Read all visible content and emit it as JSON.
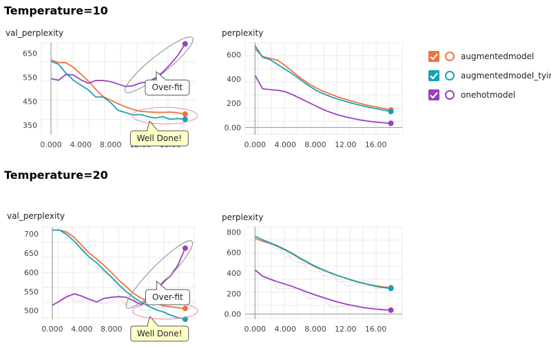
{
  "sections": [
    {
      "title": "Temperature=10"
    },
    {
      "title": "Temperature=20"
    }
  ],
  "legend": {
    "items": [
      {
        "label": "augmentedmodel",
        "color": "#f4703a",
        "icon": "checkbox-checked"
      },
      {
        "label": "augmentedmodel_tying",
        "color": "#15a3b5",
        "icon": "checkbox-checked"
      },
      {
        "label": "onehotmodel",
        "color": "#9b3fbf",
        "icon": "checkbox-checked"
      }
    ]
  },
  "annotations": {
    "ovr": "Over-fit",
    "well": "Well Done!"
  },
  "chart_data": [
    {
      "id": "t10_val",
      "type": "line",
      "title": "val_perplexity",
      "x": [
        0,
        1,
        2,
        3,
        4,
        5,
        6,
        7,
        8,
        9,
        10,
        11,
        12,
        13,
        14,
        15,
        16,
        17,
        18
      ],
      "xticks": [
        "0.000",
        "4.000",
        "8.000",
        "12.00",
        "16.00"
      ],
      "xtick_values": [
        0,
        4,
        8,
        12,
        16
      ],
      "yticks": [
        "350",
        "450",
        "550",
        "650"
      ],
      "ytick_values": [
        350,
        450,
        550,
        650
      ],
      "xlim": [
        -1.3,
        19.5
      ],
      "ylim": [
        310,
        695
      ],
      "annotations": [
        {
          "text": "Over-fit"
        },
        {
          "text": "Well Done!"
        }
      ],
      "series": [
        {
          "name": "augmentedmodel",
          "values": [
            622,
            612,
            611,
            592,
            564,
            535,
            500,
            470,
            455,
            440,
            427,
            416,
            408,
            406,
            404,
            404,
            405,
            402,
            397
          ]
        },
        {
          "name": "augmentedmodel_tying",
          "values": [
            617,
            605,
            568,
            538,
            518,
            498,
            468,
            468,
            445,
            412,
            403,
            393,
            395,
            386,
            380,
            386,
            375,
            378,
            375
          ]
        },
        {
          "name": "onehotmodel",
          "values": [
            545,
            538,
            562,
            560,
            540,
            525,
            537,
            537,
            532,
            522,
            512,
            515,
            527,
            530,
            548,
            572,
            604,
            641,
            690
          ]
        }
      ]
    },
    {
      "id": "t10_ppl",
      "type": "line",
      "title": "perplexity",
      "x": [
        0,
        1,
        2,
        3,
        4,
        5,
        6,
        7,
        8,
        9,
        10,
        11,
        12,
        13,
        14,
        15,
        16,
        17,
        18
      ],
      "xticks": [
        "0.000",
        "4.000",
        "8.000",
        "12.00",
        "16.00"
      ],
      "xtick_values": [
        0,
        4,
        8,
        12,
        16
      ],
      "yticks": [
        "0.00",
        "200",
        "400",
        "600"
      ],
      "ytick_values": [
        0,
        200,
        400,
        600
      ],
      "xlim": [
        -1.3,
        19.5
      ],
      "ylim": [
        -60,
        700
      ],
      "series": [
        {
          "name": "augmentedmodel",
          "values": [
            650,
            585,
            570,
            555,
            510,
            460,
            410,
            365,
            330,
            300,
            275,
            252,
            232,
            215,
            198,
            183,
            170,
            158,
            145
          ]
        },
        {
          "name": "augmentedmodel_tying",
          "values": [
            675,
            580,
            560,
            520,
            480,
            440,
            395,
            350,
            310,
            280,
            255,
            234,
            215,
            198,
            182,
            168,
            156,
            144,
            132
          ]
        },
        {
          "name": "onehotmodel",
          "values": [
            430,
            320,
            312,
            308,
            295,
            270,
            240,
            210,
            180,
            150,
            125,
            104,
            88,
            74,
            62,
            53,
            45,
            39,
            35
          ]
        }
      ]
    },
    {
      "id": "t20_val",
      "type": "line",
      "title": "val_perplexity",
      "x": [
        0,
        1,
        2,
        3,
        4,
        5,
        6,
        7,
        8,
        9,
        10,
        11,
        12,
        13,
        14,
        15,
        16,
        17,
        18
      ],
      "xticks": [
        "0.000",
        "4.000",
        "8.000",
        "12.00"
      ],
      "xtick_values": [
        0,
        4,
        8,
        12
      ],
      "yticks": [
        "500",
        "550",
        "600",
        "650",
        "700"
      ],
      "ytick_values": [
        500,
        550,
        600,
        650,
        700
      ],
      "xlim": [
        -1.3,
        19.5
      ],
      "ylim": [
        478,
        718
      ],
      "annotations": [
        {
          "text": "Over-fit"
        },
        {
          "text": "Well Done!"
        }
      ],
      "series": [
        {
          "name": "augmentedmodel",
          "values": [
            710,
            710,
            704,
            690,
            670,
            650,
            635,
            618,
            600,
            580,
            563,
            545,
            533,
            525,
            519,
            513,
            510,
            508,
            506
          ]
        },
        {
          "name": "augmentedmodel_tying",
          "values": [
            710,
            710,
            698,
            680,
            660,
            640,
            625,
            606,
            588,
            568,
            550,
            535,
            522,
            512,
            503,
            497,
            489,
            482,
            478
          ]
        },
        {
          "name": "onehotmodel",
          "values": [
            514,
            525,
            537,
            544,
            538,
            530,
            523,
            532,
            535,
            537,
            535,
            526,
            516,
            530,
            550,
            575,
            590,
            618,
            663
          ]
        }
      ]
    },
    {
      "id": "t20_ppl",
      "type": "line",
      "title": "perplexity",
      "x": [
        0,
        1,
        2,
        3,
        4,
        5,
        6,
        7,
        8,
        9,
        10,
        11,
        12,
        13,
        14,
        15,
        16,
        17,
        18
      ],
      "xticks": [
        "0.000",
        "4.000",
        "8.000",
        "12.00",
        "16.00"
      ],
      "xtick_values": [
        0,
        4,
        8,
        12,
        16
      ],
      "yticks": [
        "0.00",
        "200",
        "400",
        "600",
        "800"
      ],
      "ytick_values": [
        0,
        200,
        400,
        600,
        800
      ],
      "xlim": [
        -1.3,
        19.5
      ],
      "ylim": [
        -50,
        850
      ],
      "series": [
        {
          "name": "augmentedmodel",
          "values": [
            740,
            710,
            690,
            660,
            625,
            585,
            540,
            500,
            460,
            430,
            400,
            375,
            350,
            328,
            308,
            290,
            275,
            265,
            258
          ]
        },
        {
          "name": "augmentedmodel_tying",
          "values": [
            760,
            725,
            695,
            665,
            630,
            590,
            545,
            505,
            465,
            433,
            403,
            375,
            350,
            326,
            305,
            287,
            270,
            258,
            250
          ]
        },
        {
          "name": "onehotmodel",
          "values": [
            430,
            370,
            340,
            315,
            292,
            268,
            240,
            212,
            186,
            162,
            138,
            117,
            98,
            82,
            68,
            57,
            48,
            42,
            38
          ]
        }
      ]
    }
  ]
}
